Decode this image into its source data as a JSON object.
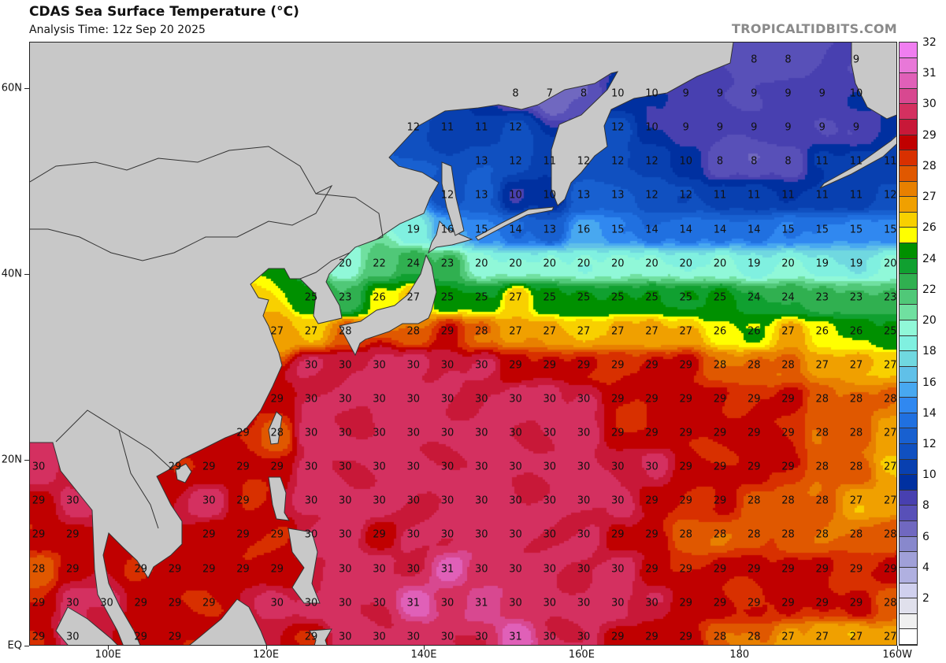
{
  "header": {
    "title": "CDAS Sea Surface Temperature (°C)",
    "subtitle": "Analysis Time: 12z Sep 20 2025",
    "site": "TROPICALTIDBITS.COM"
  },
  "axes": {
    "lat_ticks": [
      {
        "label": "60N",
        "lat": 60
      },
      {
        "label": "40N",
        "lat": 40
      },
      {
        "label": "20N",
        "lat": 20
      },
      {
        "label": "EQ",
        "lat": 0
      }
    ],
    "lon_ticks": [
      {
        "label": "100E",
        "lon": 100
      },
      {
        "label": "120E",
        "lon": 120
      },
      {
        "label": "140E",
        "lon": 140
      },
      {
        "label": "160E",
        "lon": 160
      },
      {
        "label": "180",
        "lon": 180
      },
      {
        "label": "160W",
        "lon": 200
      }
    ]
  },
  "colorbar": {
    "labels": [
      "32",
      "31",
      "30",
      "29",
      "28",
      "27",
      "26",
      "24",
      "22",
      "20",
      "18",
      "16",
      "14",
      "12",
      "10",
      "8",
      "6",
      "4",
      "2"
    ],
    "label_values": [
      32,
      31,
      30,
      29,
      28,
      27,
      26,
      24,
      22,
      20,
      18,
      16,
      14,
      12,
      10,
      8,
      6,
      4,
      2
    ],
    "bins": [
      {
        "min": 32,
        "max": 32.5,
        "color": "#f07ef0"
      },
      {
        "min": 31.5,
        "max": 32,
        "color": "#e878d8"
      },
      {
        "min": 31,
        "max": 31.5,
        "color": "#e060b8"
      },
      {
        "min": 30.5,
        "max": 31,
        "color": "#d84890"
      },
      {
        "min": 30,
        "max": 30.5,
        "color": "#d43060"
      },
      {
        "min": 29.5,
        "max": 30,
        "color": "#c81838"
      },
      {
        "min": 29,
        "max": 29.5,
        "color": "#c00000"
      },
      {
        "min": 28.5,
        "max": 29,
        "color": "#d83000"
      },
      {
        "min": 28,
        "max": 28.5,
        "color": "#e05800"
      },
      {
        "min": 27.5,
        "max": 28,
        "color": "#e88000"
      },
      {
        "min": 27,
        "max": 27.5,
        "color": "#f0a000"
      },
      {
        "min": 26.5,
        "max": 27,
        "color": "#f8d000"
      },
      {
        "min": 26,
        "max": 26.5,
        "color": "#ffff00"
      },
      {
        "min": 25,
        "max": 26,
        "color": "#009000"
      },
      {
        "min": 24,
        "max": 25,
        "color": "#10a030"
      },
      {
        "min": 23,
        "max": 24,
        "color": "#30b050"
      },
      {
        "min": 22,
        "max": 23,
        "color": "#50c878"
      },
      {
        "min": 21,
        "max": 22,
        "color": "#70e0a0"
      },
      {
        "min": 20,
        "max": 21,
        "color": "#90f8d8"
      },
      {
        "min": 19,
        "max": 20,
        "color": "#80f0e0"
      },
      {
        "min": 18,
        "max": 19,
        "color": "#70d8e0"
      },
      {
        "min": 17,
        "max": 18,
        "color": "#60c0e8"
      },
      {
        "min": 16,
        "max": 17,
        "color": "#48a8f0"
      },
      {
        "min": 15,
        "max": 16,
        "color": "#3088f0"
      },
      {
        "min": 14,
        "max": 15,
        "color": "#2070e0"
      },
      {
        "min": 13,
        "max": 14,
        "color": "#1860d0"
      },
      {
        "min": 12,
        "max": 13,
        "color": "#1050c0"
      },
      {
        "min": 11,
        "max": 12,
        "color": "#0840b0"
      },
      {
        "min": 10,
        "max": 11,
        "color": "#0030a0"
      },
      {
        "min": 9,
        "max": 10,
        "color": "#4840b0"
      },
      {
        "min": 8,
        "max": 9,
        "color": "#5850b8"
      },
      {
        "min": 7,
        "max": 8,
        "color": "#7068c0"
      },
      {
        "min": 6,
        "max": 7,
        "color": "#8888cc"
      },
      {
        "min": 5,
        "max": 6,
        "color": "#a0a0d8"
      },
      {
        "min": 4,
        "max": 5,
        "color": "#b0b0e0"
      },
      {
        "min": 3,
        "max": 4,
        "color": "#d0d0ee"
      },
      {
        "min": 2,
        "max": 3,
        "color": "#e0e0ec"
      },
      {
        "min": 1,
        "max": 2,
        "color": "#f0f0f0"
      },
      {
        "min": 0,
        "max": 1,
        "color": "#ffffff"
      }
    ]
  },
  "land_color": "#c8c8c8",
  "sst_grid": {
    "note_units": "degC",
    "rows": [
      [
        null,
        null,
        null,
        null,
        null,
        null,
        null,
        null,
        null,
        null,
        null,
        null,
        null,
        null,
        null,
        null,
        null,
        null,
        null,
        null,
        null,
        8,
        8,
        null,
        9,
        null
      ],
      [
        null,
        null,
        null,
        null,
        null,
        null,
        null,
        null,
        null,
        null,
        null,
        null,
        null,
        null,
        8,
        7,
        8,
        10,
        10,
        9,
        9,
        9,
        9,
        9,
        10,
        null
      ],
      [
        null,
        null,
        null,
        null,
        null,
        null,
        null,
        null,
        null,
        null,
        null,
        12,
        11,
        11,
        12,
        null,
        null,
        12,
        10,
        9,
        9,
        9,
        9,
        9,
        9,
        null
      ],
      [
        null,
        null,
        null,
        null,
        null,
        null,
        null,
        null,
        null,
        null,
        null,
        null,
        null,
        13,
        12,
        11,
        12,
        12,
        12,
        10,
        8,
        8,
        8,
        11,
        11,
        11
      ],
      [
        null,
        null,
        null,
        null,
        null,
        null,
        null,
        null,
        null,
        null,
        null,
        null,
        12,
        13,
        10,
        10,
        13,
        13,
        12,
        12,
        11,
        11,
        11,
        11,
        11,
        12
      ],
      [
        null,
        null,
        null,
        null,
        null,
        null,
        null,
        null,
        null,
        null,
        null,
        19,
        16,
        15,
        14,
        13,
        16,
        15,
        14,
        14,
        14,
        14,
        15,
        15,
        15,
        15
      ],
      [
        null,
        null,
        null,
        null,
        null,
        null,
        null,
        null,
        null,
        20,
        22,
        24,
        23,
        20,
        20,
        20,
        20,
        20,
        20,
        20,
        20,
        19,
        20,
        19,
        19,
        20
      ],
      [
        null,
        null,
        null,
        null,
        null,
        null,
        null,
        null,
        25,
        23,
        26,
        27,
        25,
        25,
        27,
        25,
        25,
        25,
        25,
        25,
        25,
        24,
        24,
        23,
        23,
        23
      ],
      [
        null,
        null,
        null,
        null,
        null,
        null,
        null,
        27,
        27,
        28,
        null,
        28,
        29,
        28,
        27,
        27,
        27,
        27,
        27,
        27,
        26,
        26,
        27,
        26,
        26,
        25
      ],
      [
        null,
        null,
        null,
        null,
        null,
        null,
        null,
        null,
        30,
        30,
        30,
        30,
        30,
        30,
        29,
        29,
        29,
        29,
        29,
        29,
        28,
        28,
        28,
        27,
        27,
        27
      ],
      [
        null,
        null,
        null,
        null,
        null,
        null,
        null,
        29,
        30,
        30,
        30,
        30,
        30,
        30,
        30,
        30,
        30,
        29,
        29,
        29,
        29,
        29,
        29,
        28,
        28,
        28
      ],
      [
        null,
        null,
        null,
        null,
        null,
        null,
        29,
        28,
        30,
        30,
        30,
        30,
        30,
        30,
        30,
        30,
        30,
        29,
        29,
        29,
        29,
        29,
        29,
        28,
        28,
        27
      ],
      [
        30,
        null,
        null,
        null,
        29,
        29,
        29,
        29,
        30,
        30,
        30,
        30,
        30,
        30,
        30,
        30,
        30,
        30,
        30,
        29,
        29,
        29,
        29,
        28,
        28,
        27
      ],
      [
        29,
        30,
        null,
        null,
        null,
        30,
        29,
        null,
        30,
        30,
        30,
        30,
        30,
        30,
        30,
        30,
        30,
        30,
        29,
        29,
        29,
        28,
        28,
        28,
        27,
        27
      ],
      [
        29,
        29,
        null,
        null,
        null,
        29,
        29,
        29,
        30,
        30,
        29,
        30,
        30,
        30,
        30,
        30,
        30,
        29,
        29,
        28,
        28,
        28,
        28,
        28,
        28,
        28
      ],
      [
        28,
        29,
        null,
        29,
        29,
        29,
        29,
        29,
        null,
        30,
        30,
        30,
        31,
        30,
        30,
        30,
        30,
        30,
        29,
        29,
        29,
        29,
        29,
        29,
        29,
        29
      ],
      [
        29,
        30,
        30,
        29,
        29,
        29,
        null,
        30,
        30,
        30,
        30,
        31,
        30,
        31,
        30,
        30,
        30,
        30,
        30,
        29,
        29,
        29,
        29,
        29,
        29,
        28
      ],
      [
        29,
        30,
        null,
        29,
        29,
        null,
        null,
        null,
        29,
        30,
        30,
        30,
        30,
        30,
        31,
        30,
        30,
        29,
        29,
        29,
        28,
        28,
        27,
        27,
        27,
        27
      ]
    ]
  }
}
